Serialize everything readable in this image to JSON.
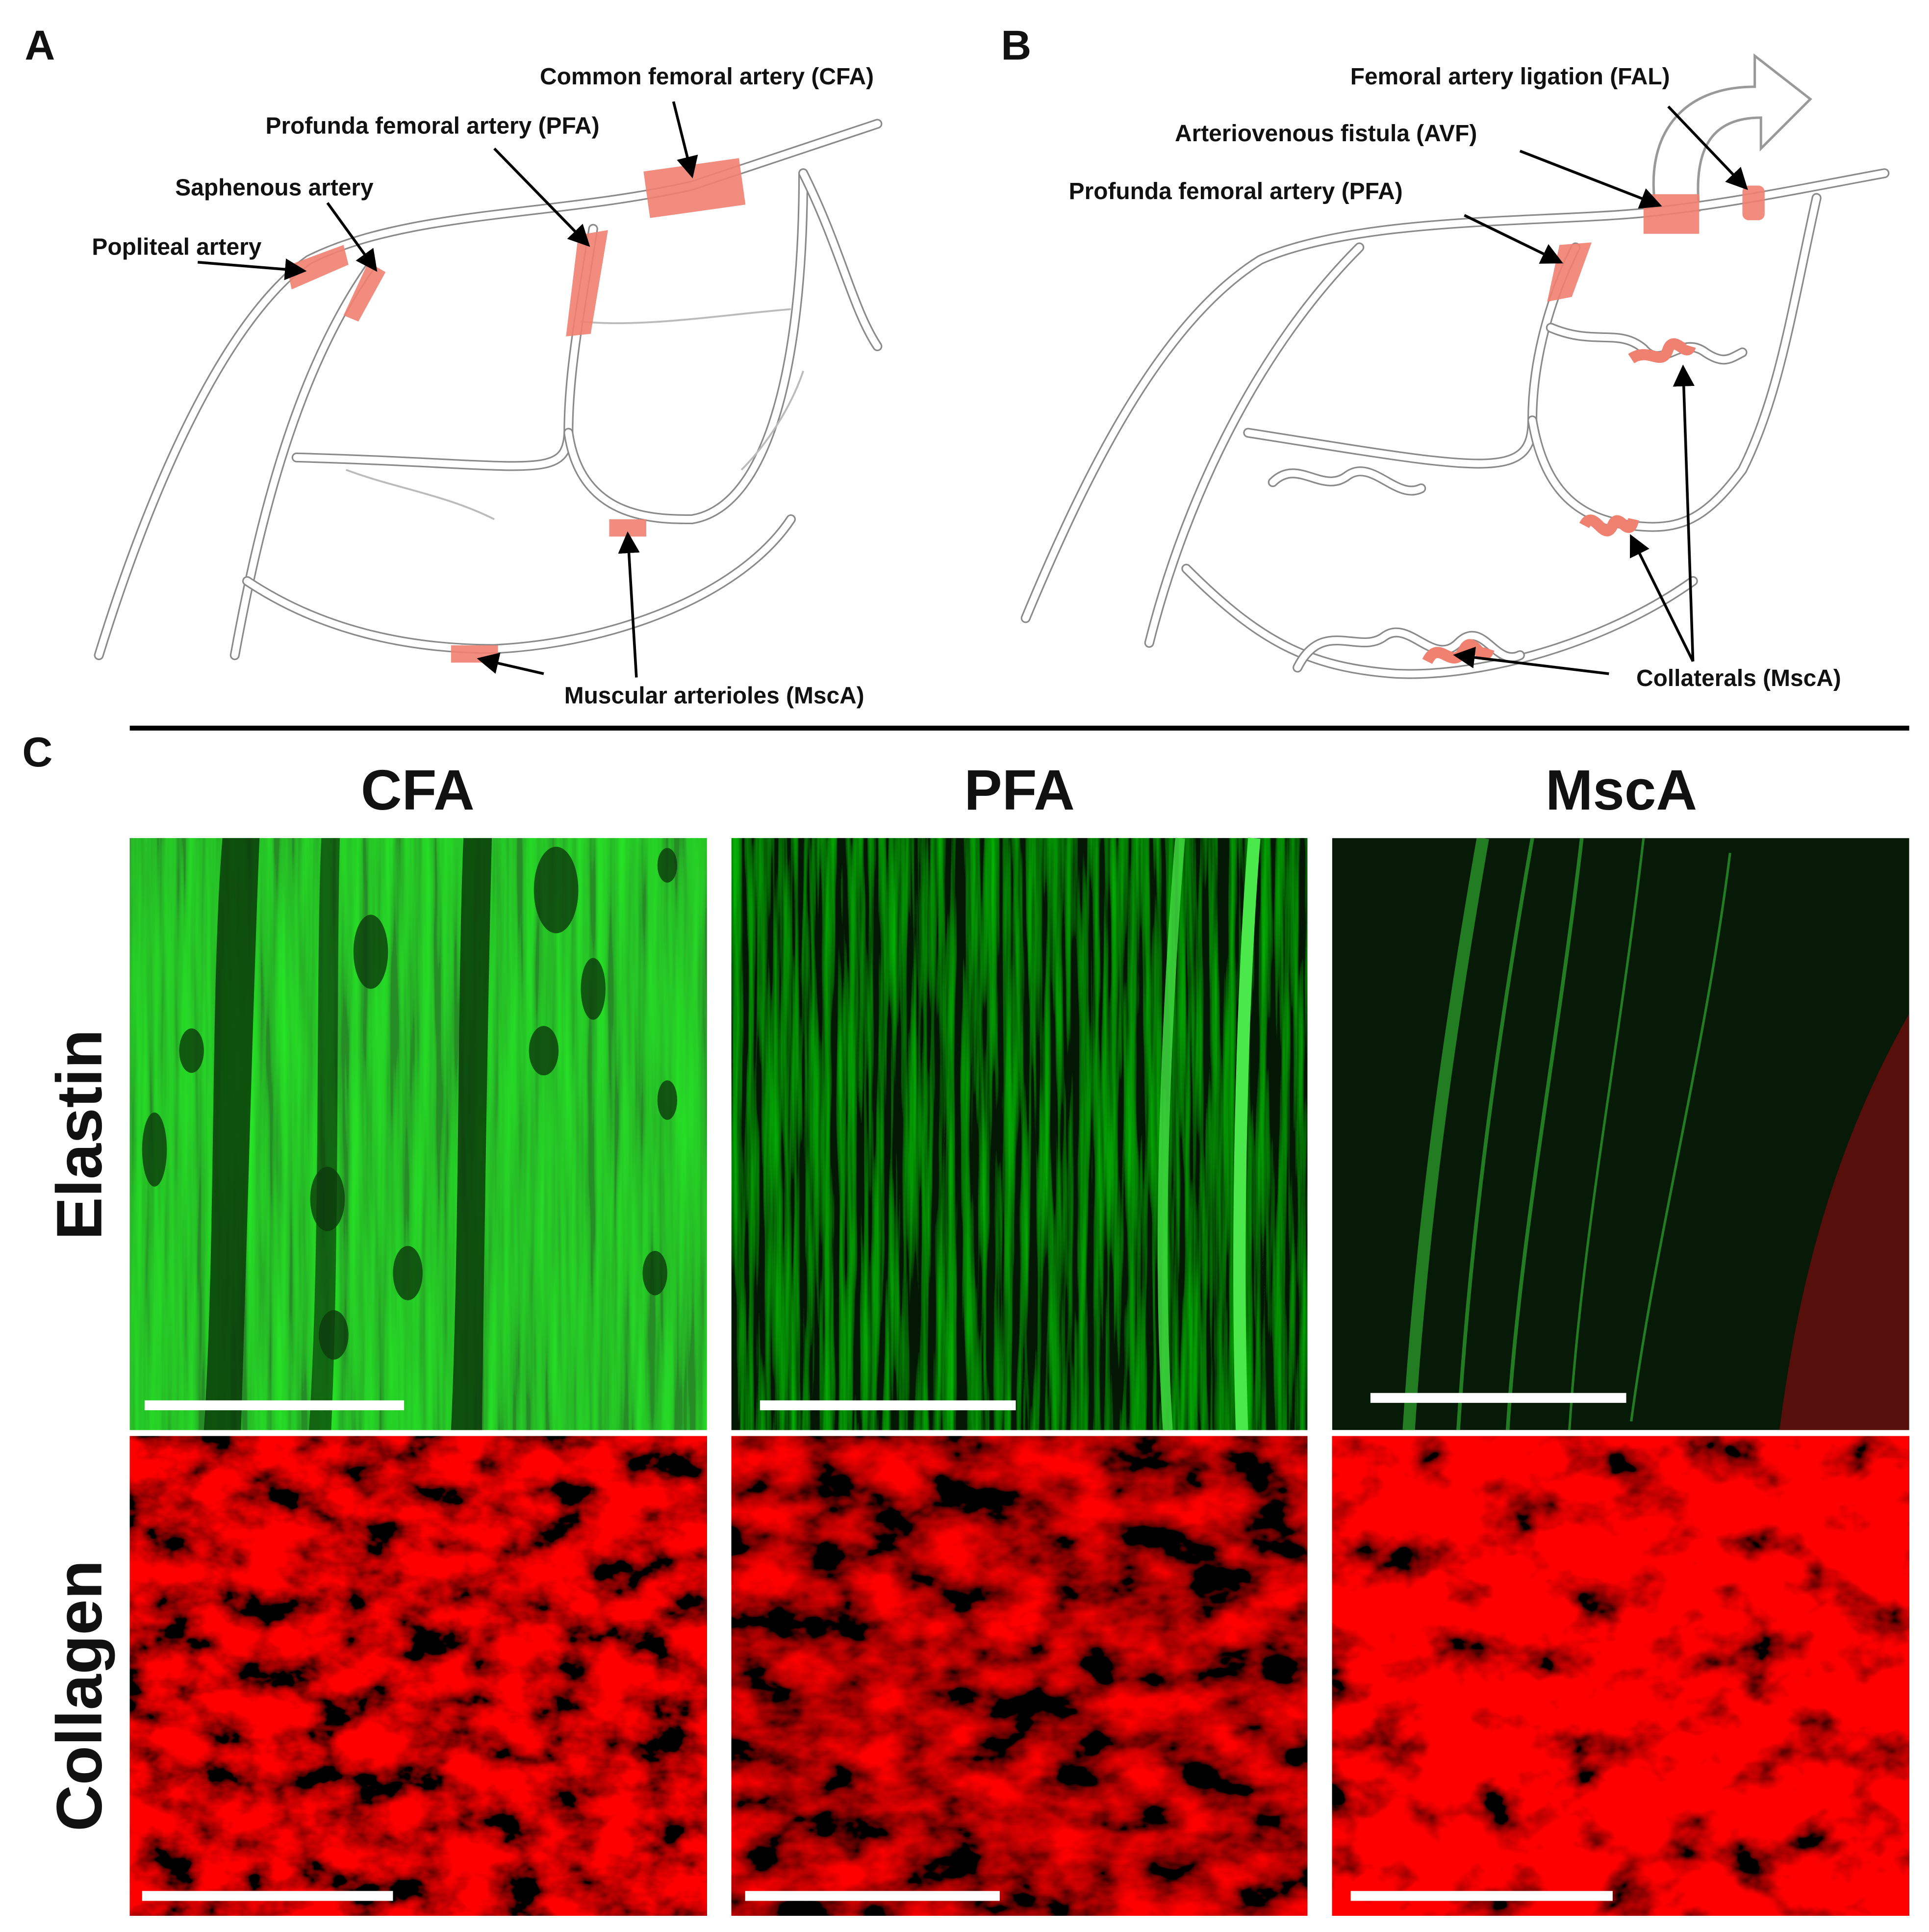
{
  "panels": {
    "a": {
      "label": "A",
      "labels": [
        "Common femoral artery (CFA)",
        "Profunda femoral artery (PFA)",
        "Saphenous artery",
        "Popliteal artery",
        "Muscular arterioles (MscA)"
      ]
    },
    "b": {
      "label": "B",
      "labels": [
        "Femoral artery ligation (FAL)",
        "Arteriovenous fistula (AVF)",
        "Profunda femoral artery (PFA)",
        "Collaterals (MscA)"
      ]
    },
    "c": {
      "label": "C",
      "columns": [
        "CFA",
        "PFA",
        "MscA"
      ],
      "rows": [
        "Elastin",
        "Collagen"
      ]
    }
  }
}
